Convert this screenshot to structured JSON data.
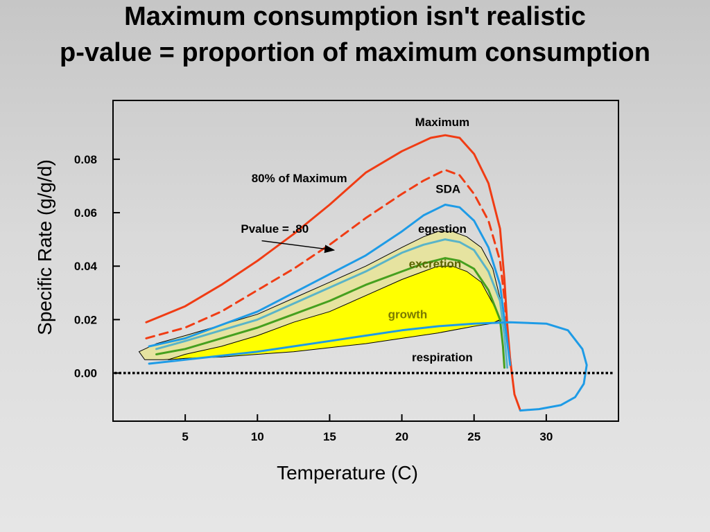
{
  "slide": {
    "title_line1": "Maximum consumption isn't realistic",
    "title_line2": "p-value = proportion of maximum consumption"
  },
  "colors": {
    "maximum": "#f03c14",
    "respiration": "#1e9be6",
    "egestion": "#5ab4c8",
    "excretion": "#46a01e",
    "growth_fill": "#ffff00",
    "band_fill": "#e6e3a0",
    "growth_text": "#7a7a00",
    "excretion_text": "#5a6400"
  },
  "chart_data": {
    "type": "line",
    "xlabel": "Temperature (C)",
    "ylabel": "Specific Rate (g/g/d)",
    "xlim": [
      0,
      35
    ],
    "ylim": [
      -0.018,
      0.102
    ],
    "x_ticks": [
      5,
      10,
      15,
      20,
      25,
      30
    ],
    "y_ticks": [
      0.0,
      0.02,
      0.04,
      0.06,
      0.08
    ],
    "y_tick_labels": [
      "0.00",
      "0.02",
      "0.04",
      "0.06",
      "0.08"
    ],
    "x_tick_labels": [
      "5",
      "10",
      "15",
      "20",
      "25",
      "30"
    ],
    "zero_line": "dotted",
    "series": [
      {
        "name": "Maximum",
        "style": "solid",
        "color": "#f03c14",
        "points": [
          [
            2.3,
            0.019
          ],
          [
            5,
            0.025
          ],
          [
            7.5,
            0.033
          ],
          [
            10,
            0.042
          ],
          [
            12.5,
            0.052
          ],
          [
            15,
            0.063
          ],
          [
            17.5,
            0.075
          ],
          [
            20,
            0.083
          ],
          [
            22,
            0.088
          ],
          [
            23,
            0.089
          ],
          [
            24,
            0.088
          ],
          [
            25,
            0.082
          ],
          [
            26,
            0.071
          ],
          [
            26.8,
            0.054
          ],
          [
            27.1,
            0.035
          ],
          [
            27.3,
            0.018
          ],
          [
            27.5,
            0.005
          ],
          [
            27.8,
            -0.008
          ],
          [
            28.2,
            -0.014
          ]
        ]
      },
      {
        "name": "80% of Maximum",
        "style": "dashed",
        "color": "#f03c14",
        "points": [
          [
            2.3,
            0.013
          ],
          [
            5,
            0.017
          ],
          [
            7.5,
            0.023
          ],
          [
            10,
            0.031
          ],
          [
            12.5,
            0.039
          ],
          [
            15,
            0.048
          ],
          [
            17.5,
            0.058
          ],
          [
            20,
            0.067
          ],
          [
            21.5,
            0.072
          ],
          [
            23,
            0.076
          ],
          [
            24,
            0.074
          ],
          [
            25,
            0.067
          ],
          [
            26,
            0.057
          ],
          [
            26.8,
            0.042
          ],
          [
            27.1,
            0.028
          ],
          [
            27.4,
            0.01
          ],
          [
            27.6,
            0.0
          ]
        ]
      },
      {
        "name": "SDA",
        "style": "solid",
        "color": "#1e9be6",
        "points": [
          [
            2.5,
            0.01
          ],
          [
            5,
            0.013
          ],
          [
            7.5,
            0.018
          ],
          [
            10,
            0.023
          ],
          [
            12.5,
            0.03
          ],
          [
            15,
            0.037
          ],
          [
            17.5,
            0.044
          ],
          [
            20,
            0.053
          ],
          [
            21.5,
            0.059
          ],
          [
            23,
            0.063
          ],
          [
            24,
            0.062
          ],
          [
            25,
            0.057
          ],
          [
            26,
            0.047
          ],
          [
            26.8,
            0.033
          ],
          [
            27.2,
            0.016
          ],
          [
            27.5,
            0.003
          ]
        ]
      },
      {
        "name": "egestion",
        "style": "solid",
        "color": "#5ab4c8",
        "points": [
          [
            3,
            0.009
          ],
          [
            5,
            0.012
          ],
          [
            7.5,
            0.016
          ],
          [
            10,
            0.02
          ],
          [
            12.5,
            0.026
          ],
          [
            15,
            0.032
          ],
          [
            17.5,
            0.038
          ],
          [
            20,
            0.045
          ],
          [
            21.5,
            0.048
          ],
          [
            23,
            0.05
          ],
          [
            24,
            0.049
          ],
          [
            25,
            0.046
          ],
          [
            26,
            0.038
          ],
          [
            26.8,
            0.027
          ],
          [
            27.1,
            0.014
          ],
          [
            27.3,
            0.002
          ]
        ]
      },
      {
        "name": "excretion",
        "style": "solid",
        "color": "#46a01e",
        "points": [
          [
            3,
            0.007
          ],
          [
            5,
            0.009
          ],
          [
            7.5,
            0.013
          ],
          [
            10,
            0.017
          ],
          [
            12.5,
            0.022
          ],
          [
            15,
            0.027
          ],
          [
            17.5,
            0.033
          ],
          [
            20,
            0.038
          ],
          [
            21.5,
            0.041
          ],
          [
            23,
            0.043
          ],
          [
            24,
            0.042
          ],
          [
            25,
            0.039
          ],
          [
            26,
            0.031
          ],
          [
            26.8,
            0.02
          ],
          [
            27,
            0.01
          ],
          [
            27.1,
            0.002
          ]
        ]
      },
      {
        "name": "respiration",
        "style": "solid",
        "color": "#1e9be6",
        "points": [
          [
            2.5,
            0.0035
          ],
          [
            5,
            0.005
          ],
          [
            7.5,
            0.0065
          ],
          [
            10,
            0.008
          ],
          [
            12.5,
            0.01
          ],
          [
            15,
            0.012
          ],
          [
            17.5,
            0.014
          ],
          [
            20,
            0.016
          ],
          [
            22.5,
            0.0175
          ],
          [
            25,
            0.0185
          ],
          [
            27.5,
            0.019
          ],
          [
            30,
            0.0185
          ],
          [
            31.5,
            0.016
          ],
          [
            32.5,
            0.009
          ],
          [
            32.8,
            0.003
          ],
          [
            32.6,
            -0.004
          ],
          [
            32.0,
            -0.009
          ],
          [
            31.0,
            -0.012
          ],
          [
            29.5,
            -0.0135
          ],
          [
            28.2,
            -0.014
          ]
        ]
      }
    ],
    "growth_region": [
      [
        3.8,
        0.005
      ],
      [
        5,
        0.007
      ],
      [
        7.5,
        0.01
      ],
      [
        10,
        0.014
      ],
      [
        12.5,
        0.019
      ],
      [
        15,
        0.023
      ],
      [
        17.5,
        0.029
      ],
      [
        20,
        0.035
      ],
      [
        21.5,
        0.038
      ],
      [
        22.5,
        0.04
      ],
      [
        23.5,
        0.04
      ],
      [
        24.5,
        0.038
      ],
      [
        25.5,
        0.034
      ],
      [
        26.3,
        0.026
      ],
      [
        26.8,
        0.02
      ],
      [
        26.2,
        0.0185
      ],
      [
        25,
        0.0175
      ],
      [
        22.5,
        0.015
      ],
      [
        20,
        0.013
      ],
      [
        17.5,
        0.011
      ],
      [
        15,
        0.0095
      ],
      [
        12.5,
        0.008
      ],
      [
        10,
        0.007
      ],
      [
        7.5,
        0.006
      ],
      [
        5,
        0.0055
      ],
      [
        3.8,
        0.005
      ]
    ],
    "band_region": [
      [
        1.8,
        0.008
      ],
      [
        3,
        0.011
      ],
      [
        5,
        0.014
      ],
      [
        7.5,
        0.018
      ],
      [
        10,
        0.022
      ],
      [
        12.5,
        0.028
      ],
      [
        15,
        0.034
      ],
      [
        17.5,
        0.04
      ],
      [
        20,
        0.047
      ],
      [
        21.5,
        0.051
      ],
      [
        22.5,
        0.053
      ],
      [
        23.5,
        0.053
      ],
      [
        24.5,
        0.051
      ],
      [
        25.5,
        0.047
      ],
      [
        26.3,
        0.039
      ],
      [
        26.8,
        0.028
      ],
      [
        27.0,
        0.02
      ],
      [
        26.3,
        0.019
      ],
      [
        25,
        0.0182
      ],
      [
        22.5,
        0.016
      ],
      [
        20,
        0.0138
      ],
      [
        17.5,
        0.0118
      ],
      [
        15,
        0.01
      ],
      [
        12.5,
        0.0085
      ],
      [
        10,
        0.0072
      ],
      [
        7.5,
        0.0062
      ],
      [
        5,
        0.0055
      ],
      [
        3.5,
        0.005
      ],
      [
        2.2,
        0.005
      ],
      [
        1.8,
        0.008
      ]
    ],
    "annotations": [
      {
        "id": "maximum",
        "text": "Maximum",
        "x": 22.8,
        "y": 0.094,
        "color": "#000000"
      },
      {
        "id": "eighty",
        "text": "80% of Maximum",
        "x": 12.9,
        "y": 0.073,
        "color": "#000000"
      },
      {
        "id": "sda",
        "text": "SDA",
        "x": 23.2,
        "y": 0.069,
        "color": "#000000"
      },
      {
        "id": "pvalue",
        "text": "Pvalue = .80",
        "x": 11.2,
        "y": 0.054,
        "color": "#000000"
      },
      {
        "id": "egestion",
        "text": "egestion",
        "x": 22.8,
        "y": 0.054,
        "color": "#000000"
      },
      {
        "id": "excretion",
        "text": "excretion",
        "x": 22.3,
        "y": 0.041,
        "color": "#5a6400"
      },
      {
        "id": "growth",
        "text": "growth",
        "x": 20.4,
        "y": 0.022,
        "color": "#7a7a00"
      },
      {
        "id": "respiration",
        "text": "respiration",
        "x": 22.8,
        "y": 0.006,
        "color": "#000000"
      }
    ],
    "arrow": {
      "from": [
        10.3,
        0.0495
      ],
      "to": [
        15.3,
        0.046
      ]
    }
  }
}
